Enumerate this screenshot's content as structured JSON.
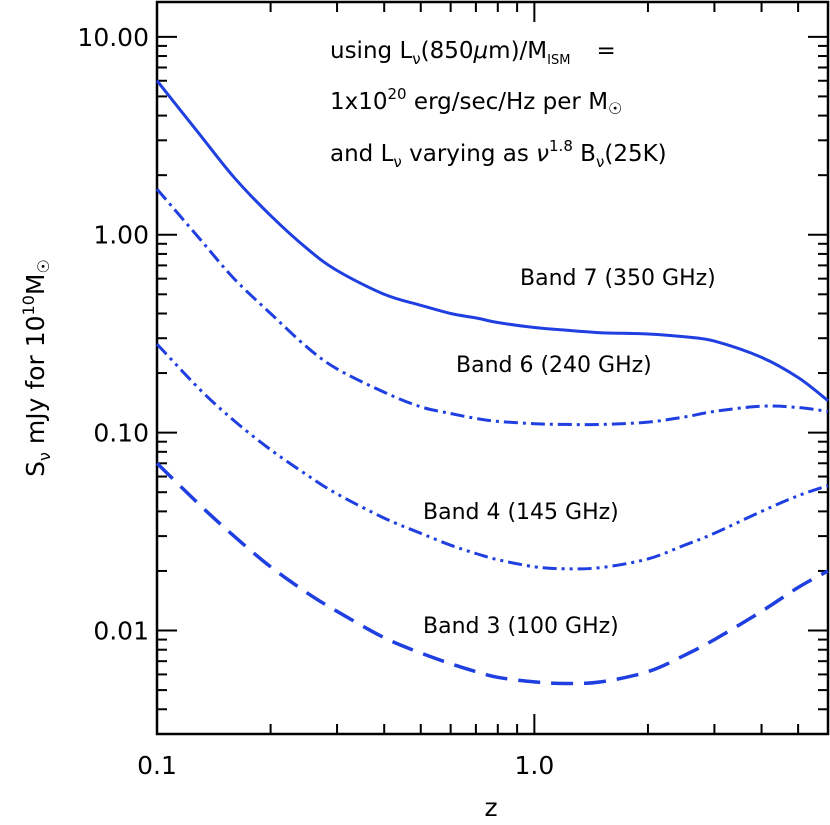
{
  "chart_data": {
    "type": "line",
    "xlabel": "z",
    "ylabel": "S_ν mJy for 10¹⁰M☉",
    "ylabel_parts": {
      "s": "S",
      "nu": "ν",
      "mid": " mJy for 10",
      "exp": "10",
      "m": "M",
      "sun": "☉"
    },
    "x_scale": "log",
    "y_scale": "log",
    "xlim": [
      0.1,
      6.0
    ],
    "ylim": [
      0.003,
      15
    ],
    "x_ticks": [
      {
        "value": 0.1,
        "label": "0.1"
      },
      {
        "value": 1.0,
        "label": "1.0"
      }
    ],
    "y_ticks": [
      {
        "value": 0.01,
        "label": "0.01"
      },
      {
        "value": 0.1,
        "label": "0.10"
      },
      {
        "value": 1.0,
        "label": "1.00"
      },
      {
        "value": 10.0,
        "label": "10.00"
      }
    ],
    "color": "#1f3fe0",
    "annotation": {
      "line1": {
        "pre": "using L",
        "sub": "ν",
        "mid": "(850",
        "mu": "μ",
        "post": "m)/M",
        "sub2": "ISM",
        "eq": "="
      },
      "line2": {
        "pre": "1x10",
        "sup": "20",
        "post": " erg/sec/Hz per M",
        "sun": "☉"
      },
      "line3": {
        "pre": "and L",
        "sub": "ν",
        "mid": " varying as ",
        "nu": "ν",
        "sup": "1.8",
        "post": " B",
        "sub2": "ν",
        "tail": "(25K)"
      }
    },
    "series": [
      {
        "name": "Band 7 (350 GHz)",
        "dash": "solid",
        "x": [
          0.1,
          0.13,
          0.16,
          0.2,
          0.25,
          0.3,
          0.4,
          0.5,
          0.6,
          0.7,
          0.8,
          1.0,
          1.2,
          1.5,
          2.0,
          2.5,
          3.0,
          4.0,
          5.0,
          6.0
        ],
        "y": [
          6.0,
          3.2,
          1.95,
          1.25,
          0.85,
          0.66,
          0.5,
          0.44,
          0.4,
          0.38,
          0.36,
          0.34,
          0.33,
          0.32,
          0.315,
          0.305,
          0.29,
          0.24,
          0.19,
          0.145
        ]
      },
      {
        "name": "Band 6 (240 GHz)",
        "dash": "dash-dot",
        "x": [
          0.1,
          0.13,
          0.16,
          0.2,
          0.25,
          0.3,
          0.4,
          0.5,
          0.6,
          0.7,
          0.8,
          1.0,
          1.2,
          1.5,
          2.0,
          2.5,
          3.0,
          4.0,
          5.0,
          6.0
        ],
        "y": [
          1.7,
          0.95,
          0.6,
          0.4,
          0.27,
          0.21,
          0.16,
          0.135,
          0.125,
          0.118,
          0.114,
          0.111,
          0.11,
          0.11,
          0.113,
          0.12,
          0.128,
          0.136,
          0.134,
          0.128
        ]
      },
      {
        "name": "Band 4 (145 GHz)",
        "dash": "dash-dot-dot",
        "x": [
          0.1,
          0.13,
          0.16,
          0.2,
          0.25,
          0.3,
          0.4,
          0.5,
          0.6,
          0.7,
          0.8,
          1.0,
          1.2,
          1.5,
          2.0,
          2.5,
          3.0,
          4.0,
          5.0,
          6.0
        ],
        "y": [
          0.28,
          0.165,
          0.115,
          0.082,
          0.061,
          0.049,
          0.037,
          0.031,
          0.027,
          0.0245,
          0.0228,
          0.021,
          0.0205,
          0.0208,
          0.023,
          0.027,
          0.031,
          0.04,
          0.048,
          0.054
        ]
      },
      {
        "name": "Band 3 (100 GHz)",
        "dash": "dashed",
        "x": [
          0.1,
          0.13,
          0.16,
          0.2,
          0.25,
          0.3,
          0.4,
          0.5,
          0.6,
          0.7,
          0.8,
          1.0,
          1.2,
          1.5,
          2.0,
          2.5,
          3.0,
          4.0,
          5.0,
          6.0
        ],
        "y": [
          0.07,
          0.043,
          0.03,
          0.021,
          0.0155,
          0.0125,
          0.0092,
          0.0077,
          0.0068,
          0.0062,
          0.0058,
          0.0055,
          0.0054,
          0.0055,
          0.0062,
          0.0075,
          0.009,
          0.0125,
          0.0165,
          0.02
        ]
      }
    ]
  }
}
